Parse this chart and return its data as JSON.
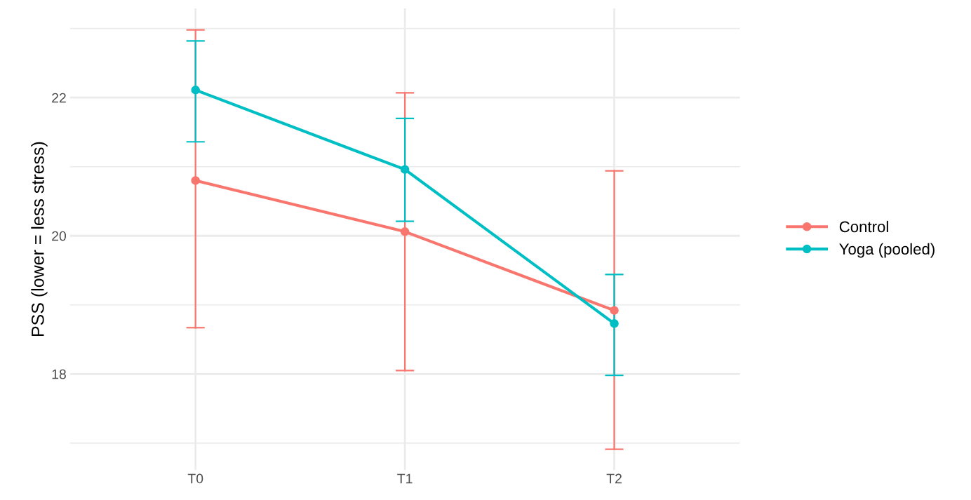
{
  "chart_data": {
    "type": "line",
    "ylabel": "PSS (lower = less stress)",
    "categories": [
      "T0",
      "T1",
      "T2"
    ],
    "series": [
      {
        "name": "Control",
        "color": "#f8766d",
        "values": [
          20.8,
          20.06,
          18.92
        ],
        "errors": [
          [
            18.67,
            22.98
          ],
          [
            18.05,
            22.07
          ],
          [
            16.91,
            20.94
          ]
        ]
      },
      {
        "name": "Yoga (pooled)",
        "color": "#00bfc4",
        "values": [
          22.11,
          20.96,
          18.73
        ],
        "errors": [
          [
            21.36,
            22.82
          ],
          [
            20.21,
            21.7
          ],
          [
            17.98,
            19.44
          ]
        ]
      }
    ],
    "ylim": [
      16.61,
      23.29
    ],
    "yticks": [
      {
        "value": 17,
        "label": null
      },
      18,
      {
        "value": 19,
        "label": null
      },
      20,
      {
        "value": 21,
        "label": null
      },
      22,
      {
        "value": 23,
        "label": null
      }
    ],
    "grid": true,
    "legend": "right",
    "marker": "circle",
    "line_style": "solid"
  }
}
